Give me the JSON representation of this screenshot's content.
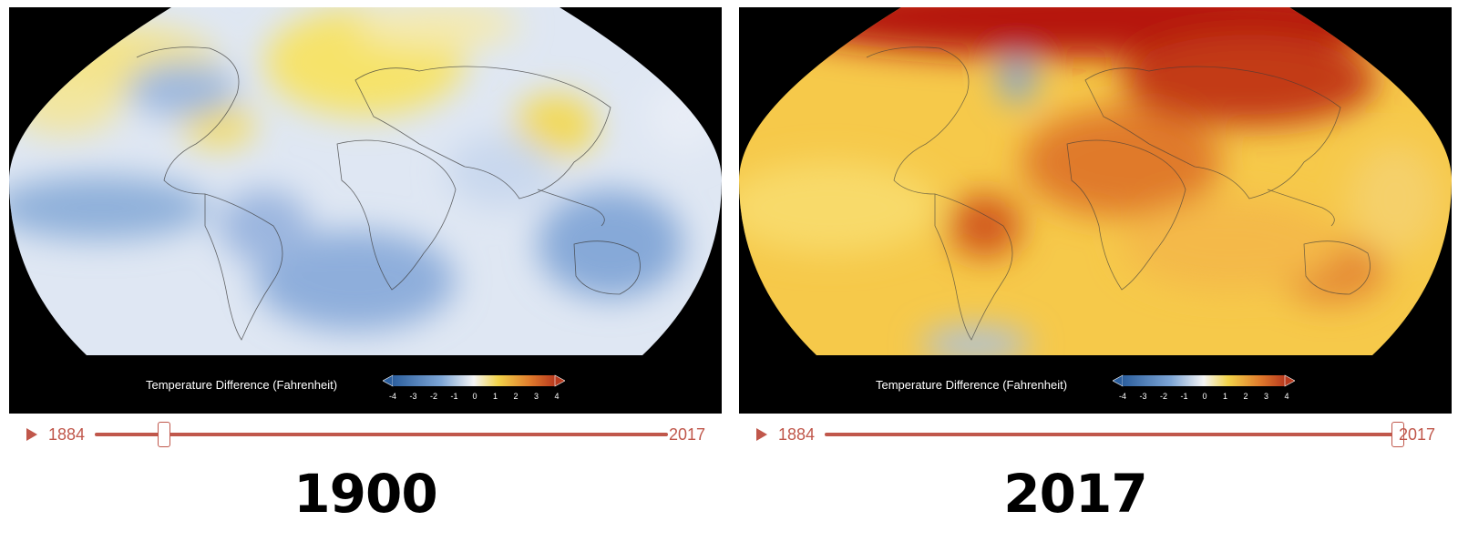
{
  "colors": {
    "slider": "#c0574b",
    "background": "#ffffff",
    "map_frame": "#000000",
    "scale_cold": "#2c5f9e",
    "scale_neutral": "#f5f5f5",
    "scale_warm": "#b83a1e"
  },
  "legend": {
    "title": "Temperature Difference (Fahrenheit)",
    "ticks": [
      "-4",
      "-3",
      "-2",
      "-1",
      "0",
      "1",
      "2",
      "3",
      "4"
    ]
  },
  "panels": [
    {
      "id": "1900",
      "display_year": "1900",
      "timeline": {
        "start_year": "1884",
        "end_year": "2017",
        "value": 1900,
        "min": 1884,
        "max": 2017
      },
      "anomaly_tone": "cool",
      "icons": {
        "play": "play-icon"
      }
    },
    {
      "id": "2017",
      "display_year": "2017",
      "timeline": {
        "start_year": "1884",
        "end_year": "2017",
        "value": 2017,
        "min": 1884,
        "max": 2017
      },
      "anomaly_tone": "warm",
      "icons": {
        "play": "play-icon"
      }
    }
  ]
}
